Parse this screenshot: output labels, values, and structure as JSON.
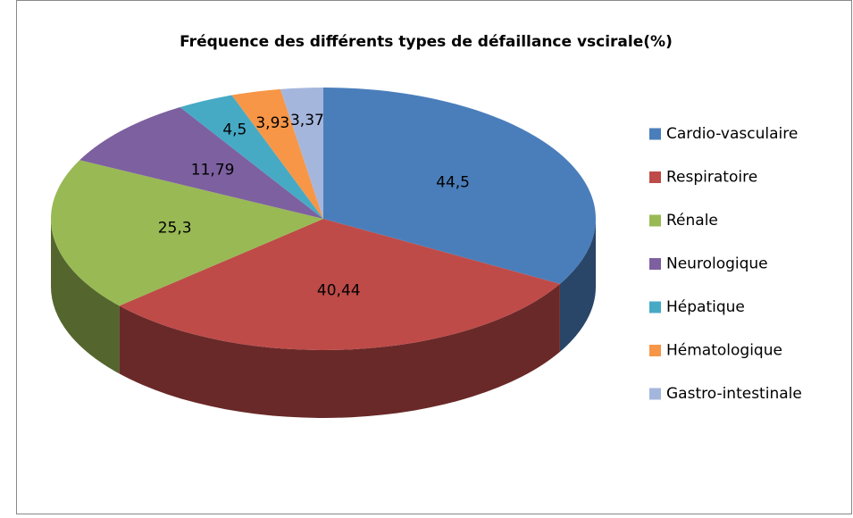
{
  "chart_data": {
    "type": "pie",
    "title": "Fréquence des différents types de défaillance vscirale(%)",
    "categories": [
      "Cardio-vasculaire",
      "Respiratoire",
      "Rénale",
      "Neurologique",
      "Hépatique",
      "Hématologique",
      "Gastro-intestinale"
    ],
    "values": [
      44.5,
      40.44,
      25.3,
      11.79,
      4.5,
      3.93,
      3.37
    ],
    "value_labels": [
      "44,5",
      "40,44",
      "25,3",
      "11,79",
      "4,5",
      "3,93",
      "3,37"
    ],
    "colors": [
      "#4a7ebb",
      "#be4b48",
      "#98b954",
      "#7d60a0",
      "#46aac5",
      "#f79646",
      "#a5b6dd"
    ],
    "legend": "right"
  }
}
